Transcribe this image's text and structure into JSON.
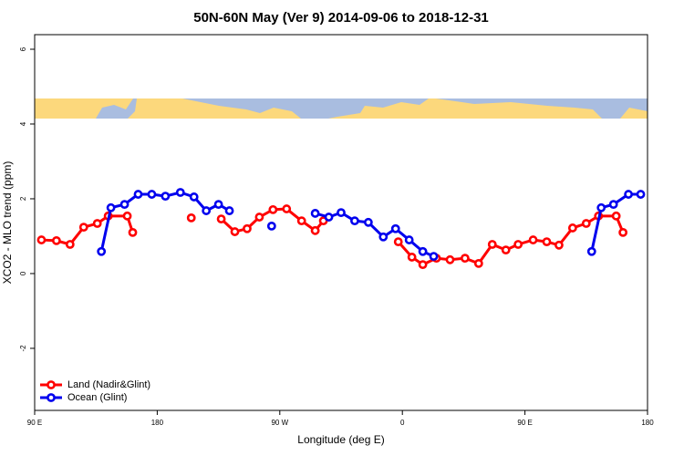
{
  "chart_data": {
    "type": "line",
    "title": "50N-60N May (Ver 9)   2014-09-06 to 2018-12-31",
    "x_label": "Longitude (deg E)",
    "y_label": "XCO2 - MLO trend (ppm)",
    "xlim": [
      90,
      540
    ],
    "ylim": [
      -3.66,
      6.39
    ],
    "xticks": [
      {
        "value": 90,
        "label": "90 E"
      },
      180,
      {
        "value": 270,
        "label": "90 W"
      },
      {
        "value": 360,
        "label": "0"
      },
      {
        "value": 450,
        "label": "90 E"
      },
      {
        "value": 540,
        "label": "180"
      }
    ],
    "yticks": [
      -2,
      0,
      2,
      4,
      6
    ],
    "legend": "bottom-left",
    "series": [
      {
        "name": "Land (Nadir&Glint)",
        "color": "#ff0000",
        "x": [
          95,
          106,
          116,
          126,
          136,
          144,
          158,
          162,
          null,
          205,
          null,
          227,
          237,
          246,
          255,
          265,
          275,
          286,
          296,
          302,
          null,
          357,
          367,
          375,
          385,
          395,
          406,
          416,
          426,
          436,
          445,
          456,
          466,
          475,
          485,
          495,
          504,
          517,
          522
        ],
        "values": [
          0.9,
          0.88,
          0.78,
          1.24,
          1.34,
          1.54,
          1.54,
          1.1,
          null,
          1.49,
          null,
          1.46,
          1.12,
          1.2,
          1.51,
          1.71,
          1.73,
          1.41,
          1.15,
          1.41,
          null,
          0.85,
          0.44,
          0.24,
          0.41,
          0.37,
          0.41,
          0.27,
          0.78,
          0.63,
          0.78,
          0.9,
          0.85,
          0.76,
          1.22,
          1.34,
          1.54,
          1.54,
          1.1
        ]
      },
      {
        "name": "Ocean (Glint)",
        "color": "#0000ee",
        "x": [
          139,
          146,
          156,
          166,
          176,
          186,
          197,
          207,
          216,
          225,
          233,
          null,
          264,
          null,
          296,
          306,
          315,
          325,
          335,
          346,
          355,
          365,
          375,
          383,
          null,
          499,
          506,
          515,
          526,
          535
        ],
        "values": [
          0.59,
          1.76,
          1.85,
          2.12,
          2.12,
          2.07,
          2.17,
          2.05,
          1.68,
          1.85,
          1.68,
          null,
          1.27,
          null,
          1.61,
          1.51,
          1.63,
          1.41,
          1.37,
          0.98,
          1.2,
          0.9,
          0.59,
          0.46,
          null,
          0.59,
          1.76,
          1.85,
          2.12,
          2.12
        ]
      }
    ]
  }
}
